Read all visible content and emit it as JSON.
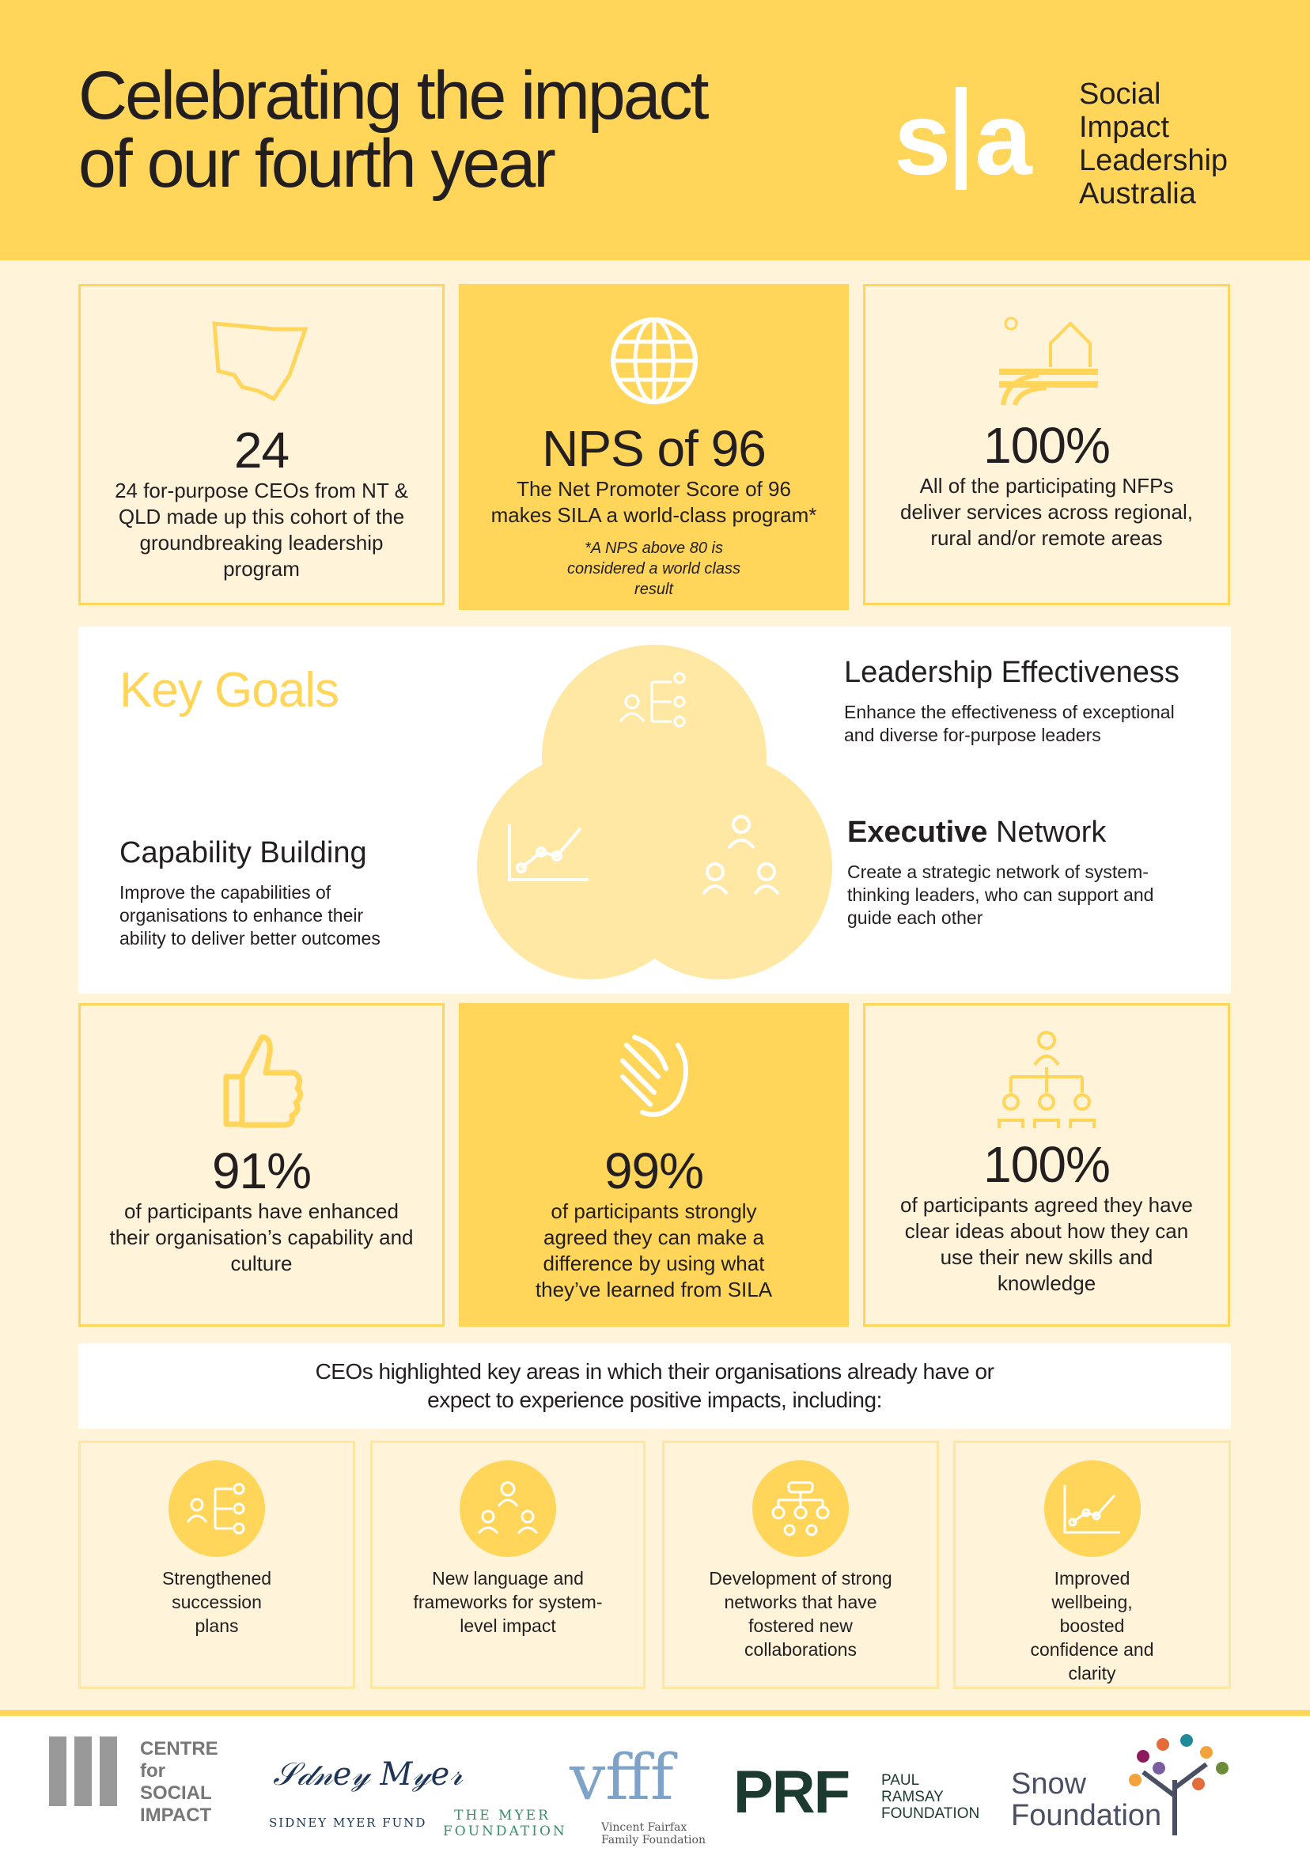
{
  "header": {
    "title_line1": "Celebrating the impact",
    "title_line2": "of our fourth year",
    "logo_mark": "sila",
    "logo_text": [
      "Social",
      "Impact",
      "Leadership",
      "Australia"
    ]
  },
  "colors": {
    "yellow": "#FFD55A",
    "cream": "#FFF3DA",
    "light_yellow": "#FFE7A3",
    "text": "#231f20"
  },
  "stats_top": [
    {
      "icon": "nsw-map-icon",
      "value": "24",
      "desc": "24 for-purpose CEOs from NT & QLD made up this cohort of the groundbreaking leadership program"
    },
    {
      "icon": "globe-icon",
      "value": "NPS of 96",
      "desc": "The Net Promoter Score of 96 makes SILA a world-class program*",
      "note": "*A NPS above 80 is considered a world class result"
    },
    {
      "icon": "farm-house-icon",
      "value": "100%",
      "desc": "All of the participating NFPs deliver services across regional, rural and/or remote areas"
    }
  ],
  "key_goals": {
    "heading": "Key Goals",
    "goals": [
      {
        "title": "Leadership Effectiveness",
        "desc": "Enhance the effectiveness of exceptional and diverse for-purpose leaders"
      },
      {
        "title_bold": "Executive",
        "title_rest": " Network",
        "desc": "Create a strategic network of system-thinking leaders, who can support and guide each other"
      },
      {
        "title": "Capability Building",
        "desc": "Improve the capabilities of organisations to enhance their ability to deliver better outcomes"
      }
    ]
  },
  "stats_bottom": [
    {
      "icon": "thumbs-up-icon",
      "value": "91%",
      "desc": "of participants have enhanced their organisation’s capability and culture"
    },
    {
      "icon": "handshake-icon",
      "value": "99%",
      "desc": "of participants strongly agreed they can make a difference by using what they’ve learned from SILA"
    },
    {
      "icon": "org-chart-icon",
      "value": "100%",
      "desc": "of participants agreed they have clear ideas about how they can use their new skills and knowledge"
    }
  ],
  "impacts": {
    "intro": "CEOs highlighted key areas in which their organisations already have or expect to experience positive impacts, including:",
    "items": [
      {
        "icon": "succession-icon",
        "label": "Strengthened succession plans"
      },
      {
        "icon": "network-people-icon",
        "label": "New language and frameworks for system-level impact"
      },
      {
        "icon": "hierarchy-icon",
        "label": "Development of strong networks that have fostered new collaborations"
      },
      {
        "icon": "growth-chart-icon",
        "label": "Improved wellbeing, boosted confidence and clarity"
      }
    ]
  },
  "sponsors": [
    "CENTRE for SOCIAL IMPACT",
    "SIDNEY MYER FUND",
    "THE MYER FOUNDATION",
    "Vincent Fairfax Family Foundation",
    "PRF",
    "PAUL RAMSAY FOUNDATION",
    "Snow Foundation"
  ]
}
